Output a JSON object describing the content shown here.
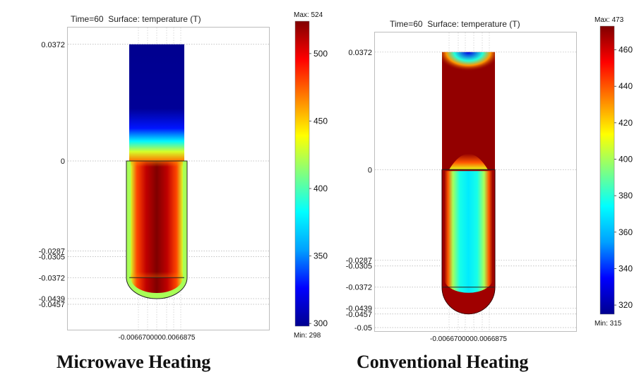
{
  "chart_data": [
    {
      "type": "heatmap",
      "title": "Time=60  Surface: temperature (T)",
      "caption": "Microwave Heating",
      "y_ticks": [
        {
          "value": 0.0372,
          "label": "0.0372"
        },
        {
          "value": 0,
          "label": "0"
        },
        {
          "value": -0.0287,
          "label": "-0.0287"
        },
        {
          "value": -0.0305,
          "label": "-0.0305"
        },
        {
          "value": -0.0372,
          "label": "-0.0372"
        },
        {
          "value": -0.0439,
          "label": "-0.0439"
        },
        {
          "value": -0.0457,
          "label": "-0.0457"
        }
      ],
      "x_ticks_label": "-0.0066700000.0066875",
      "ylim": [
        -0.052,
        0.0385
      ],
      "colorbar": {
        "max_label": "Max: 524",
        "min_label": "Min: 298",
        "min": 298,
        "max": 524,
        "ticks": [
          500,
          450,
          400,
          350,
          300
        ]
      },
      "regions": {
        "upper_tube": {
          "top": 0.0372,
          "bottom": 0,
          "hot_end": "bottom",
          "surface_temperature": 298,
          "near_interface_temperature": 420
        },
        "lower_tube": {
          "top": 0,
          "bottom": -0.0372,
          "core_temperature": 524,
          "wall_temperature": 420
        },
        "rounded_bottom_shell": {
          "temperature": 420
        }
      },
      "colors": {
        "stops": [
          "#00008f",
          "#0000ff",
          "#00a0ff",
          "#00ffff",
          "#80ff80",
          "#ffff00",
          "#ff8000",
          "#ff0000",
          "#800000"
        ]
      }
    },
    {
      "type": "heatmap",
      "title": "Time=60  Surface: temperature (T)",
      "caption": "Conventional Heating",
      "y_ticks": [
        {
          "value": 0.0372,
          "label": "0.0372"
        },
        {
          "value": 0,
          "label": "0"
        },
        {
          "value": -0.0287,
          "label": "-0.0287"
        },
        {
          "value": -0.0305,
          "label": "-0.0305"
        },
        {
          "value": -0.0372,
          "label": "-0.0372"
        },
        {
          "value": -0.0439,
          "label": "-0.0439"
        },
        {
          "value": -0.0457,
          "label": "-0.0457"
        },
        {
          "value": -0.05,
          "label": "-0.05"
        }
      ],
      "x_ticks_label": "-0.0066700000.0066875",
      "ylim": [
        -0.05,
        0.0385
      ],
      "colorbar": {
        "max_label": "Max: 473",
        "min_label": "Min: 315",
        "min": 315,
        "max": 473,
        "ticks": [
          460,
          440,
          420,
          400,
          380,
          360,
          340,
          320
        ]
      },
      "regions": {
        "upper_tube": {
          "top": 0.0372,
          "bottom": 0,
          "wall_temperature": 473,
          "top_center_temperature": 330
        },
        "lower_tube": {
          "top": 0,
          "bottom": -0.0372,
          "core_temperature": 370,
          "wall_temperature": 473
        },
        "rounded_bottom_shell": {
          "temperature": 473
        }
      },
      "colors": {
        "stops": [
          "#00008f",
          "#0000ff",
          "#00a0ff",
          "#00ffff",
          "#80ff80",
          "#ffff00",
          "#ff8000",
          "#ff0000",
          "#800000"
        ]
      }
    }
  ]
}
